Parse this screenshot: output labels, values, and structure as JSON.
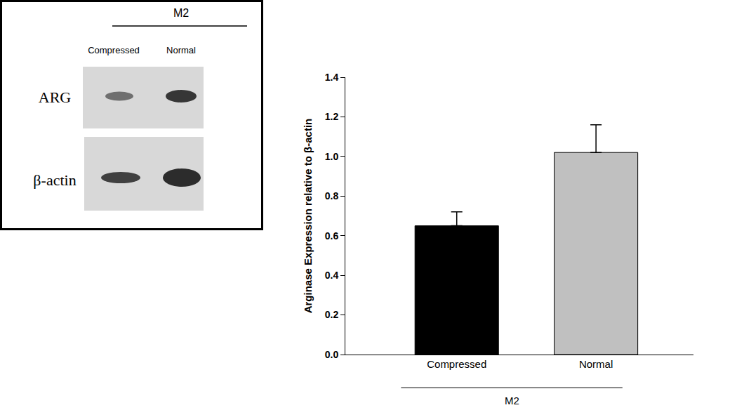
{
  "chart_data": {
    "type": "bar",
    "y_label": "Arginase Expression relative to β-actin",
    "categories": [
      "Compressed",
      "Normal"
    ],
    "group_label": "M2",
    "values": [
      0.65,
      1.02
    ],
    "errors": [
      0.07,
      0.14
    ],
    "colors": [
      "#000000",
      "#c0c0c0"
    ],
    "ylim": [
      0,
      1.4
    ],
    "yticks": [
      {
        "value": 0,
        "label": "0.0"
      },
      {
        "value": 0.2,
        "label": "0.2"
      },
      {
        "value": 0.4,
        "label": "0.4"
      },
      {
        "value": 0.6,
        "label": "0.6"
      },
      {
        "value": 0.8,
        "label": "0.8"
      },
      {
        "value": 1,
        "label": "1.0"
      },
      {
        "value": 1.2,
        "label": "1.2"
      },
      {
        "value": 1.4,
        "label": "1.4"
      }
    ],
    "grid": false
  },
  "inset": {
    "group": "M2",
    "lanes": [
      "Compressed",
      "Normal"
    ],
    "rows": [
      "ARG",
      "β-actin"
    ]
  }
}
